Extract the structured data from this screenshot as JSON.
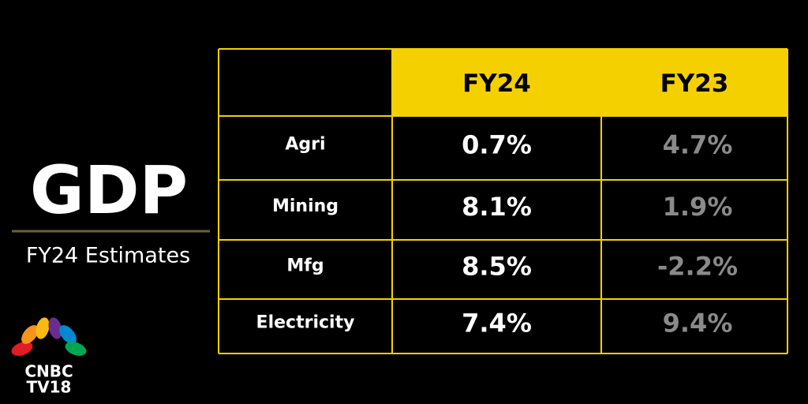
{
  "header": {
    "title": "GDP",
    "subtitle": "FY24 Estimates"
  },
  "table": {
    "columns": [
      "FY24",
      "FY23"
    ],
    "rows": [
      [
        "Agri",
        "0.7%",
        "4.7%"
      ],
      [
        "Mining",
        "8.1%",
        "1.9%"
      ],
      [
        "Mfg",
        "8.5%",
        "-2.2%"
      ],
      [
        "Electricity",
        "7.4%",
        "9.4%"
      ]
    ]
  },
  "logo": {
    "lines": [
      "CNBC",
      "TV18"
    ]
  }
}
